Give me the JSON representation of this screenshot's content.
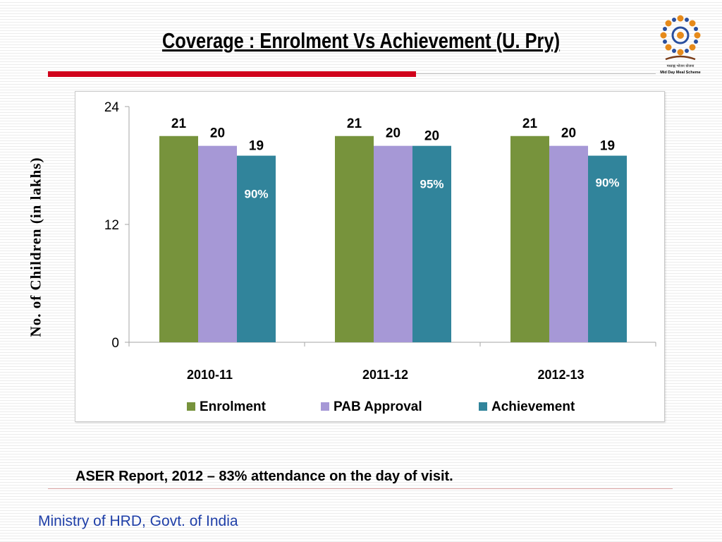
{
  "slide": {
    "title": "Coverage : Enrolment Vs Achievement (U. Pry)",
    "note": "ASER Report, 2012 – 83% attendance on the day of visit.",
    "footer": "Ministry of HRD, Govt. of India",
    "logo_text": "Mid Day Meal Scheme"
  },
  "chart_data": {
    "type": "bar",
    "ylabel": "No. of Children (in lakhs)",
    "ylim": [
      0,
      24
    ],
    "yticks": [
      0,
      12,
      24
    ],
    "categories": [
      "2010-11",
      "2011-12",
      "2012-13"
    ],
    "series": [
      {
        "name": "Enrolment",
        "values": [
          21,
          21,
          21
        ],
        "color": "#77933c",
        "labels": [
          "21",
          "21",
          "21"
        ]
      },
      {
        "name": "PAB Approval",
        "values": [
          20,
          20,
          20
        ],
        "color": "#a698d6",
        "labels": [
          "20",
          "20",
          "20"
        ]
      },
      {
        "name": "Achievement",
        "values": [
          19,
          20,
          19
        ],
        "color": "#31849b",
        "labels": [
          "19",
          "20",
          "19"
        ]
      }
    ],
    "annotations": [
      "90%",
      "95%",
      "90%"
    ],
    "annotation_color": "#ffffff",
    "legend": "bottom",
    "grid": false
  }
}
